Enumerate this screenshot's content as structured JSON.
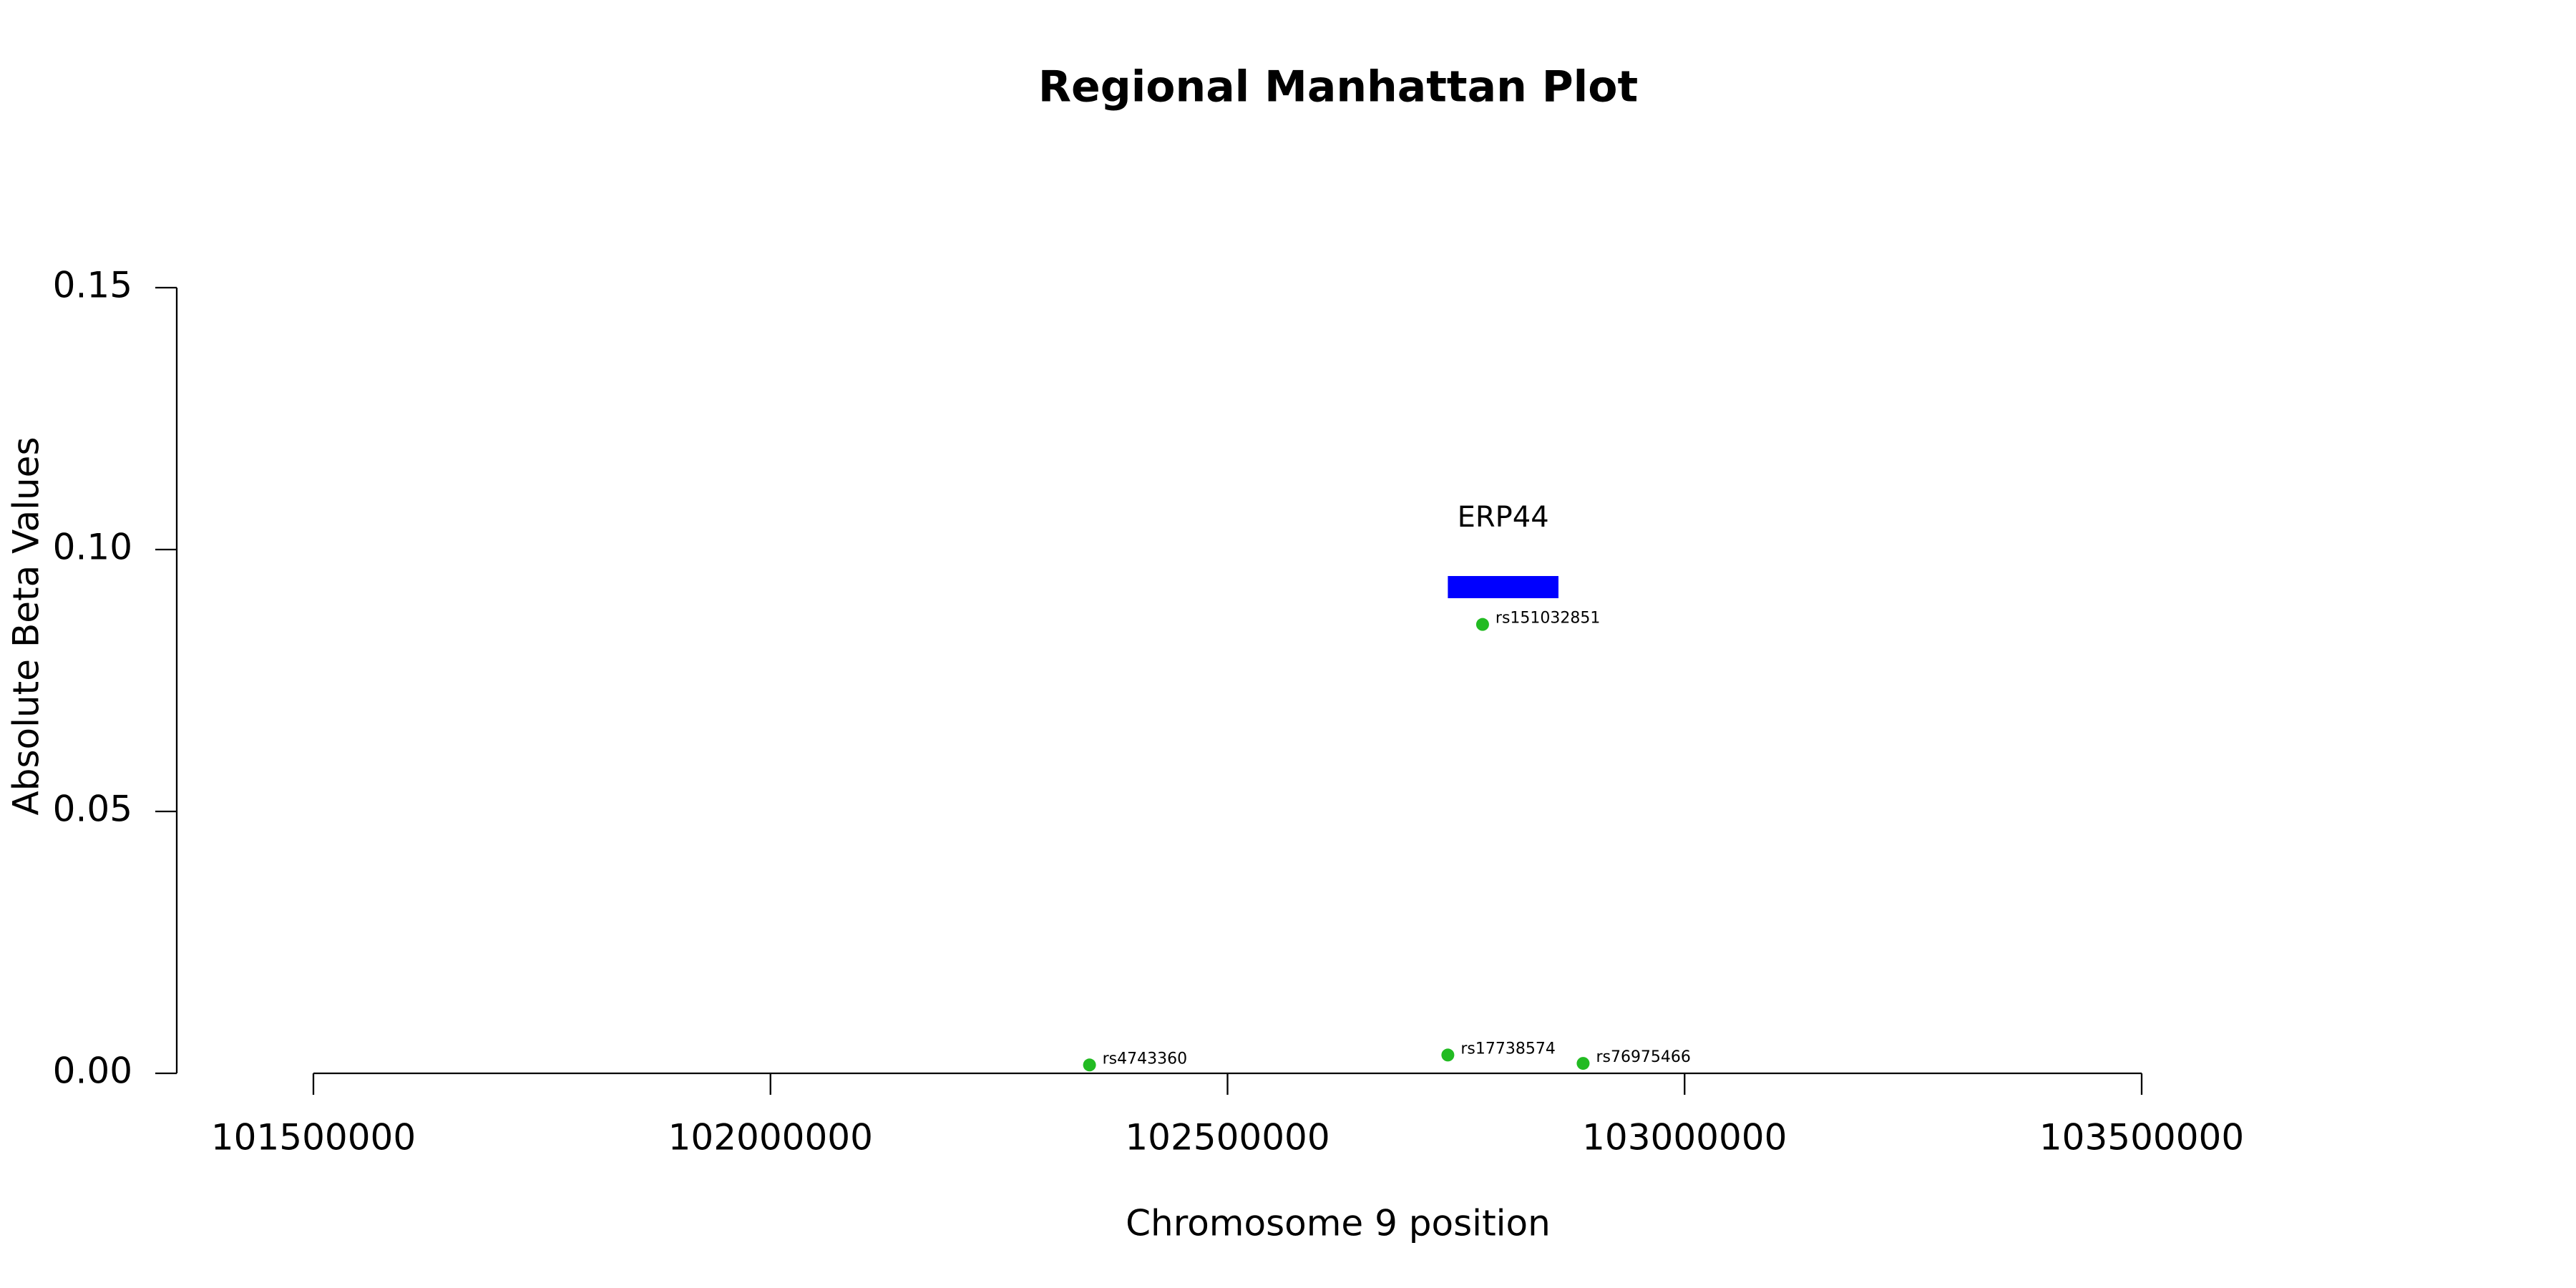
{
  "chart_data": {
    "type": "scatter",
    "title": "Regional Manhattan Plot",
    "x_label": "Chromosome 9 position",
    "y_label": "Absolute Beta Values",
    "x": [
      102349000,
      102741000,
      102889000,
      102779000
    ],
    "values": [
      0.0016,
      0.0035,
      0.0019,
      0.0857
    ],
    "point_labels": [
      "rs4743360",
      "rs17738574",
      "rs76975466",
      "rs151032851"
    ],
    "color": "#22bb22",
    "genes": [
      {
        "name": "ERP44",
        "start": 102741000,
        "end": 102862000,
        "color": "#0000ff"
      }
    ],
    "xlim": [
      101500000,
      103500000
    ],
    "xticks": [
      101500000,
      102000000,
      102500000,
      103000000,
      103500000
    ],
    "ylim": [
      0,
      0.15
    ],
    "yticks": [
      {
        "value": 0,
        "label": "0.00"
      },
      {
        "value": 0.05,
        "label": "0.05"
      },
      {
        "value": 0.1,
        "label": "0.10"
      },
      {
        "value": 0.15,
        "label": "0.15"
      }
    ]
  }
}
